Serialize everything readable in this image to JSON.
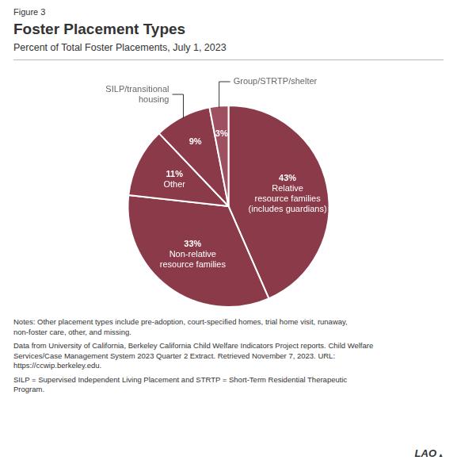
{
  "chart_data": {
    "type": "pie",
    "fig_label": "Figure 3",
    "title": "Foster Placement Types",
    "subtitle": "Percent of Total Foster Placements, July 1, 2023",
    "categories": [
      "Relative\nresource families\n(includes guardians)",
      "Non-relative\nresource families",
      "Other",
      "SILP/transitional\nhousing",
      "Group/STRTP/shelter"
    ],
    "values": [
      43,
      33,
      11,
      9,
      3
    ],
    "value_labels": [
      "43%",
      "33%",
      "11%",
      "9%",
      "3%"
    ],
    "data_labels": true,
    "colors": [
      "#8B3A4A",
      "#8B3A4A",
      "#8B3A4A",
      "#8B3A4A",
      "#9E5060"
    ],
    "notes": [
      "Notes: Other placement types include pre-adoption, court-specified homes, trial home visit, runaway,\nnon-foster care, other, and missing.",
      "Data from University of California, Berkeley California Child Welfare Indicators Project reports. Child Welfare\nServices/Case Management System 2023 Quarter 2 Extract. Retrieved November 7, 2023. URL:\nhttps://ccwip.berkeley.edu.",
      "SILP = Supervised Independent Living Placement and STRTP = Short-Term Residential Therapeutic\nProgram."
    ],
    "logo": "LAO",
    "logo_mark": "▲"
  }
}
